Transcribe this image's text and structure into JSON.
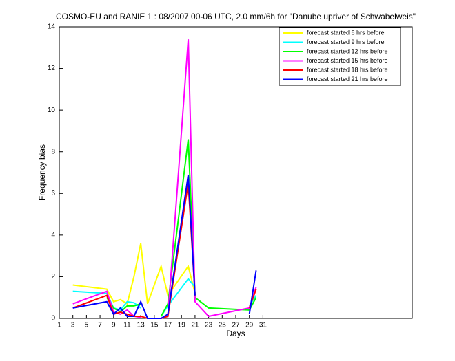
{
  "chart_data": {
    "type": "line",
    "title": "COSMO-EU and RANIE 1 : 08/2007 00-06 UTC, 2.0 mm/6h for \"Danube upriver of Schwabelweis\"",
    "x_label": "Days",
    "y_label": "Frequency bias",
    "x": [
      3,
      8,
      9,
      10,
      11,
      12,
      13,
      14,
      16,
      17,
      20,
      21,
      23,
      29,
      30
    ],
    "series": [
      {
        "name": "forecast started 6 hrs before",
        "color": "#ffff00",
        "values": [
          1.6,
          1.4,
          0.8,
          0.9,
          0.7,
          2.0,
          3.6,
          0.7,
          2.5,
          1.1,
          2.5,
          1.2,
          null,
          null,
          null
        ]
      },
      {
        "name": "forecast started 9 hrs before",
        "color": "#00ffff",
        "values": [
          1.3,
          1.2,
          0.5,
          0.4,
          0.8,
          0.75,
          0.5,
          null,
          0.1,
          0.6,
          1.9,
          1.5,
          null,
          0.6,
          1.1
        ]
      },
      {
        "name": "forecast started 12 hrs before",
        "color": "#00ff00",
        "values": [
          null,
          1.0,
          0.5,
          0.3,
          0.6,
          0.6,
          0.7,
          null,
          0.1,
          0.7,
          8.6,
          1.0,
          0.5,
          0.4,
          1.0
        ]
      },
      {
        "name": "forecast started 15 hrs before",
        "color": "#ff00ff",
        "values": [
          0.7,
          1.3,
          0.3,
          0.2,
          0.4,
          0.1,
          0.05,
          null,
          0,
          0.1,
          13.4,
          0.8,
          0.1,
          0.5,
          1.5
        ]
      },
      {
        "name": "forecast started 18 hrs before",
        "color": "#ff0000",
        "values": [
          0.5,
          1.1,
          0.2,
          0.3,
          0.2,
          0.1,
          0.1,
          0,
          0,
          0.1,
          6.5,
          1.1,
          null,
          0.5,
          1.4
        ]
      },
      {
        "name": "forecast started 21 hrs before",
        "color": "#0000ff",
        "values": [
          0.5,
          0.8,
          0.2,
          0.5,
          0.1,
          0.1,
          0.8,
          0,
          0,
          0.2,
          6.9,
          1.1,
          null,
          0.2,
          2.3
        ]
      }
    ],
    "xlim": [
      1,
      53
    ],
    "ylim": [
      0,
      14
    ],
    "xticks": [
      1,
      3,
      5,
      7,
      9,
      11,
      13,
      15,
      17,
      19,
      21,
      23,
      25,
      27,
      29,
      31
    ],
    "yticks": [
      0,
      2,
      4,
      6,
      8,
      10,
      12,
      14
    ],
    "legend": "upper right"
  }
}
